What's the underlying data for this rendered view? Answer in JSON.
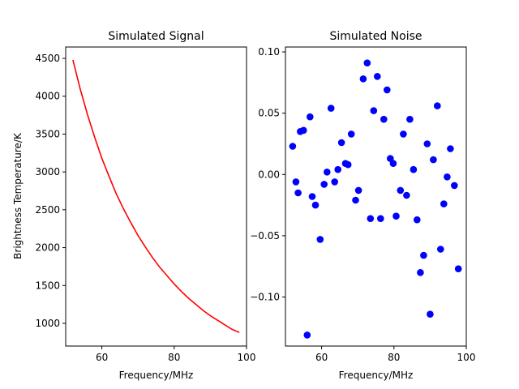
{
  "chart_data": [
    {
      "type": "line",
      "title": "Simulated Signal",
      "xlabel": "Frequency/MHz",
      "ylabel": "Brightness Temperature/K",
      "xlim": [
        50,
        100
      ],
      "ylim": [
        700,
        4650
      ],
      "xticks": [
        60,
        80,
        100
      ],
      "yticks": [
        1000,
        1500,
        2000,
        2500,
        3000,
        3500,
        4000,
        4500
      ],
      "grid": false,
      "series": [
        {
          "color": "#ff0000",
          "x": [
            52,
            54,
            56,
            58,
            60,
            62,
            64,
            66,
            68,
            70,
            72,
            74,
            76,
            78,
            80,
            82,
            84,
            86,
            88,
            90,
            92,
            94,
            96,
            98
          ],
          "y": [
            4480,
            4100,
            3760,
            3460,
            3180,
            2940,
            2710,
            2510,
            2330,
            2160,
            2010,
            1870,
            1740,
            1630,
            1520,
            1420,
            1330,
            1250,
            1170,
            1100,
            1040,
            980,
            920,
            880
          ]
        }
      ]
    },
    {
      "type": "scatter",
      "title": "Simulated Noise",
      "xlabel": "Frequency/MHz",
      "ylabel": "",
      "xlim": [
        50,
        100
      ],
      "ylim": [
        -0.14,
        0.104
      ],
      "xticks": [
        60,
        80,
        100
      ],
      "xtick_labels": [
        "60",
        "80",
        "100"
      ],
      "yticks": [
        0.1,
        0.05,
        0.0,
        -0.05,
        -0.1
      ],
      "ytick_labels": [
        "0.10",
        "0.05",
        "0.00",
        "−0.05",
        "−0.10"
      ],
      "grid": false,
      "series": [
        {
          "color": "#0000ff",
          "points": [
            [
              52.0,
              0.023
            ],
            [
              52.9,
              -0.006
            ],
            [
              53.5,
              -0.015
            ],
            [
              54.1,
              0.035
            ],
            [
              55.0,
              0.036
            ],
            [
              56.0,
              -0.131
            ],
            [
              56.8,
              0.047
            ],
            [
              57.4,
              -0.018
            ],
            [
              58.3,
              -0.025
            ],
            [
              59.6,
              -0.053
            ],
            [
              60.7,
              -0.008
            ],
            [
              61.5,
              0.002
            ],
            [
              62.6,
              0.054
            ],
            [
              63.6,
              -0.006
            ],
            [
              64.5,
              0.004
            ],
            [
              65.5,
              0.026
            ],
            [
              66.6,
              0.009
            ],
            [
              67.3,
              0.008
            ],
            [
              68.2,
              0.033
            ],
            [
              69.4,
              -0.021
            ],
            [
              70.2,
              -0.013
            ],
            [
              71.5,
              0.078
            ],
            [
              72.6,
              0.091
            ],
            [
              73.5,
              -0.036
            ],
            [
              74.4,
              0.052
            ],
            [
              75.4,
              0.08
            ],
            [
              76.3,
              -0.036
            ],
            [
              77.2,
              0.045
            ],
            [
              78.1,
              0.069
            ],
            [
              79.0,
              0.013
            ],
            [
              79.8,
              0.009
            ],
            [
              80.6,
              -0.034
            ],
            [
              81.8,
              -0.013
            ],
            [
              82.6,
              0.033
            ],
            [
              83.5,
              -0.017
            ],
            [
              84.4,
              0.045
            ],
            [
              85.4,
              0.004
            ],
            [
              86.4,
              -0.037
            ],
            [
              87.3,
              -0.08
            ],
            [
              88.2,
              -0.066
            ],
            [
              89.2,
              0.025
            ],
            [
              90.0,
              -0.114
            ],
            [
              90.9,
              0.012
            ],
            [
              92.0,
              0.056
            ],
            [
              92.9,
              -0.061
            ],
            [
              93.8,
              -0.024
            ],
            [
              94.7,
              -0.002
            ],
            [
              95.6,
              0.021
            ],
            [
              96.7,
              -0.009
            ],
            [
              97.8,
              -0.077
            ]
          ]
        }
      ]
    }
  ]
}
